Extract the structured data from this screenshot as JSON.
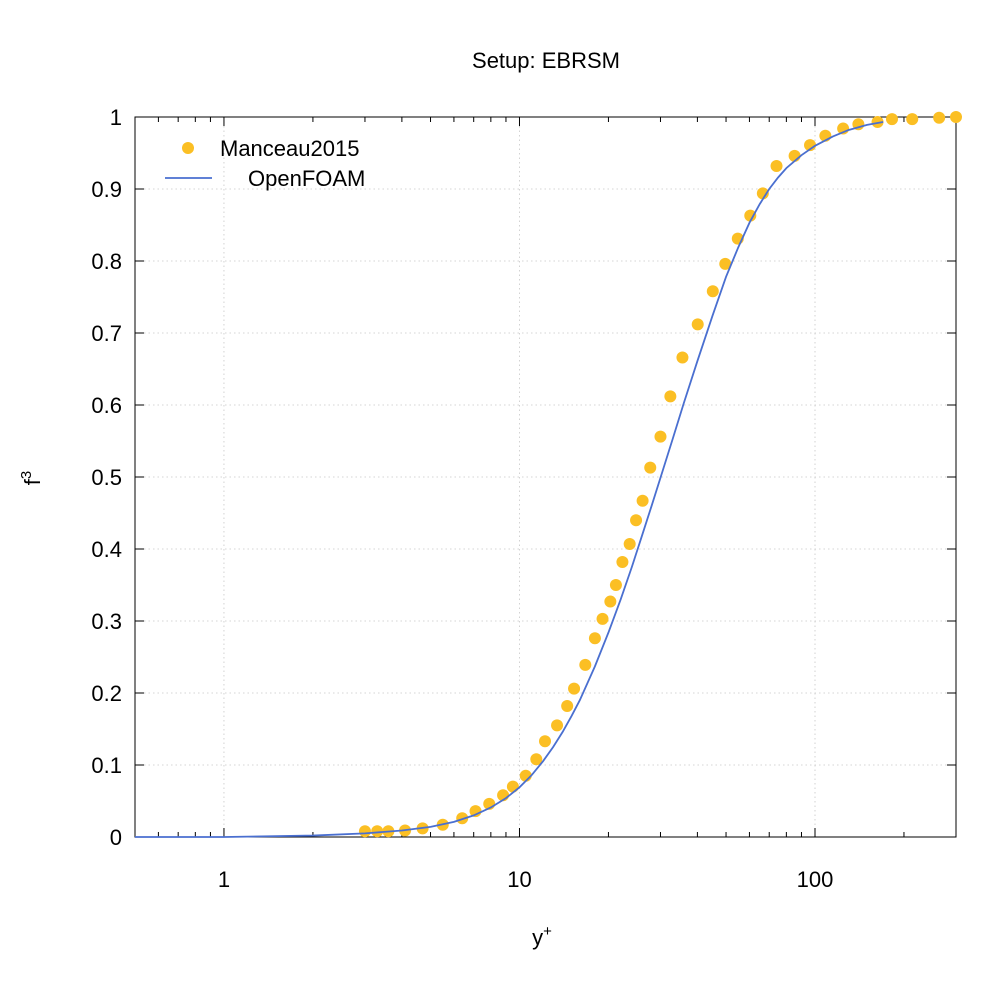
{
  "chart_data": {
    "type": "scatter",
    "title": "Setup: EBRSM",
    "xlabel": "y",
    "xlabel_superscript": "+",
    "ylabel": "f",
    "ylabel_superscript": "3",
    "xscale": "log",
    "xlim": [
      0.5,
      300
    ],
    "ylim": [
      0,
      1
    ],
    "grid": true,
    "legend_position": "top-left",
    "x_ticks": [
      {
        "value": 1,
        "label": "1"
      },
      {
        "value": 10,
        "label": "10"
      },
      {
        "value": 100,
        "label": "100"
      }
    ],
    "y_ticks": [
      {
        "value": 0,
        "label": "0"
      },
      {
        "value": 0.1,
        "label": "0.1"
      },
      {
        "value": 0.2,
        "label": "0.2"
      },
      {
        "value": 0.3,
        "label": "0.3"
      },
      {
        "value": 0.4,
        "label": "0.4"
      },
      {
        "value": 0.5,
        "label": "0.5"
      },
      {
        "value": 0.6,
        "label": "0.6"
      },
      {
        "value": 0.7,
        "label": "0.7"
      },
      {
        "value": 0.8,
        "label": "0.8"
      },
      {
        "value": 0.9,
        "label": "0.9"
      },
      {
        "value": 1,
        "label": "1"
      }
    ],
    "series": [
      {
        "name": "Manceau2015",
        "kind": "points",
        "color": "#fbbf24",
        "x": [
          3.0,
          3.3,
          3.6,
          4.1,
          4.7,
          5.5,
          6.4,
          7.1,
          7.9,
          8.8,
          9.5,
          10.5,
          11.4,
          12.2,
          13.4,
          14.5,
          15.3,
          16.7,
          18.0,
          19.1,
          20.3,
          21.2,
          22.3,
          23.6,
          24.8,
          26.1,
          27.7,
          30.0,
          32.4,
          35.6,
          40.1,
          45.1,
          49.7,
          54.8,
          60.4,
          66.6,
          74.1,
          85.3,
          96.2,
          108.4,
          124.5,
          140.2,
          162.8,
          182.2,
          213.3,
          263.1,
          300.0
        ],
        "y": [
          0.008,
          0.008,
          0.008,
          0.009,
          0.012,
          0.017,
          0.026,
          0.036,
          0.046,
          0.058,
          0.07,
          0.085,
          0.108,
          0.133,
          0.155,
          0.182,
          0.206,
          0.239,
          0.276,
          0.303,
          0.327,
          0.35,
          0.382,
          0.407,
          0.44,
          0.467,
          0.513,
          0.556,
          0.612,
          0.666,
          0.712,
          0.758,
          0.796,
          0.831,
          0.863,
          0.894,
          0.932,
          0.946,
          0.961,
          0.974,
          0.984,
          0.99,
          0.993,
          0.997,
          0.997,
          0.999,
          1.0
        ]
      },
      {
        "name": "OpenFOAM",
        "kind": "line",
        "color": "#4a6fd0",
        "x": [
          0.5,
          1.0,
          2.0,
          3.0,
          4.0,
          5.0,
          6.0,
          7.0,
          8.0,
          9.0,
          10.0,
          11.0,
          12.0,
          13.0,
          14.0,
          15.0,
          16.0,
          18.0,
          20.0,
          22.0,
          24.0,
          26.0,
          28.0,
          30.0,
          33.0,
          36.0,
          40.0,
          45.0,
          50.0,
          55.0,
          60.0,
          65.0,
          70.0,
          75.0,
          80.0,
          90.0,
          100.0,
          115.0,
          130.0,
          150.0,
          170.0
        ],
        "y": [
          0.0,
          0.0,
          0.002,
          0.005,
          0.009,
          0.014,
          0.021,
          0.03,
          0.041,
          0.054,
          0.069,
          0.086,
          0.105,
          0.125,
          0.146,
          0.168,
          0.19,
          0.237,
          0.284,
          0.33,
          0.375,
          0.419,
          0.46,
          0.499,
          0.553,
          0.603,
          0.661,
          0.724,
          0.778,
          0.819,
          0.853,
          0.879,
          0.9,
          0.916,
          0.929,
          0.947,
          0.96,
          0.973,
          0.982,
          0.989,
          0.993
        ]
      }
    ]
  }
}
